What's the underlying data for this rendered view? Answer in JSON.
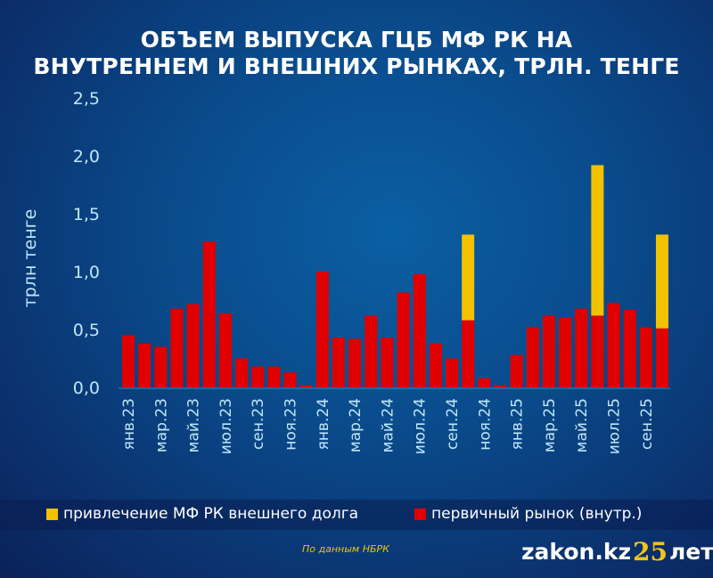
{
  "title_line1": "ОБЪЕМ ВЫПУСКА ГЦБ МФ РК НА",
  "title_line2": "ВНУТРЕННЕМ И ВНЕШНИХ РЫНКАХ, ТРЛН. ТЕНГЕ",
  "source": "По данным НБРК",
  "logo": {
    "text": "zakon.kz",
    "number": "25",
    "suffix": "лет"
  },
  "colors": {
    "domestic": "#e00000",
    "external": "#f2c200",
    "axis_text": "#bfe6f5"
  },
  "chart_data": {
    "type": "bar",
    "stacked": true,
    "ylabel": "трлн тенге",
    "ylim": [
      0,
      2.5
    ],
    "yticks": [
      "0,0",
      "0,5",
      "1,0",
      "1,5",
      "2,0",
      "2,5"
    ],
    "categories": [
      "янв.23",
      "фев.23",
      "мар.23",
      "апр.23",
      "май.23",
      "июн.23",
      "июл.23",
      "авг.23",
      "сен.23",
      "окт.23",
      "ноя.23",
      "дек.23",
      "янв.24",
      "фев.24",
      "мар.24",
      "апр.24",
      "май.24",
      "июн.24",
      "июл.24",
      "авг.24",
      "сен.24",
      "окт.24",
      "ноя.24",
      "дек.24",
      "янв.25",
      "фев.25",
      "мар.25",
      "апр.25",
      "май.25",
      "июн.25",
      "июл.25",
      "авг.25",
      "сен.25",
      "окт.25"
    ],
    "xtick_labels": [
      "янв.23",
      "мар.23",
      "май.23",
      "июл.23",
      "сен.23",
      "ноя.23",
      "янв.24",
      "мар.24",
      "май.24",
      "июл.24",
      "сен.24",
      "ноя.24",
      "янв.25",
      "мар.25",
      "май.25",
      "июл.25",
      "сен.25"
    ],
    "legend_position": "bottom",
    "series": [
      {
        "name": "первичный рынок (внутр.)",
        "color": "#e00000",
        "values": [
          0.45,
          0.38,
          0.35,
          0.68,
          0.72,
          1.26,
          0.64,
          0.25,
          0.18,
          0.18,
          0.13,
          0.02,
          1.0,
          0.43,
          0.42,
          0.62,
          0.43,
          0.82,
          0.98,
          0.38,
          0.25,
          0.58,
          0.08,
          0.02,
          0.28,
          0.52,
          0.62,
          0.6,
          0.68,
          0.62,
          0.73,
          0.67,
          0.52,
          0.51
        ]
      },
      {
        "name": "привлечение МФ РК внешнего долга",
        "color": "#f2c200",
        "values": [
          0,
          0,
          0,
          0,
          0,
          0,
          0,
          0,
          0,
          0,
          0,
          0,
          0,
          0,
          0,
          0,
          0,
          0,
          0,
          0,
          0,
          0.74,
          0,
          0,
          0,
          0,
          0,
          0,
          0,
          1.3,
          0,
          0,
          0,
          0.81
        ]
      }
    ]
  }
}
